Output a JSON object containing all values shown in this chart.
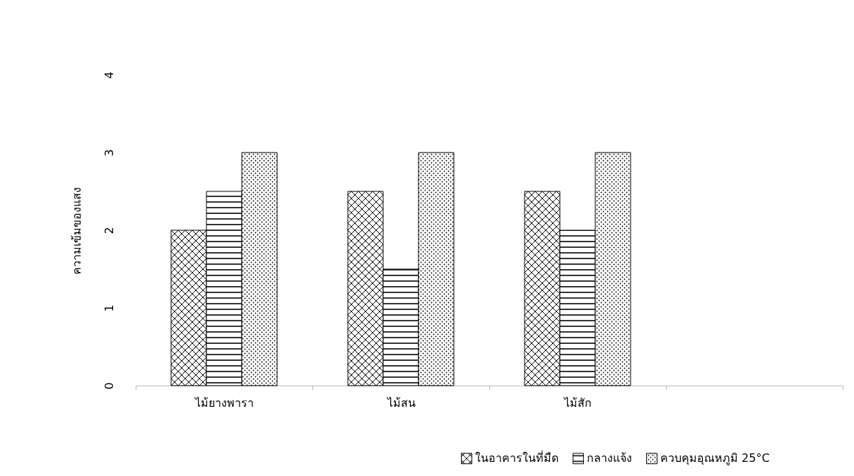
{
  "chart_data": {
    "type": "bar",
    "ylabel": "ความเข้มของแสง",
    "categories": [
      "ไม้ยางพารา",
      "ไม้สน",
      "ไม้สัก",
      null
    ],
    "series": [
      {
        "name": "ในอาคารในที่มืด",
        "color": "#000000",
        "values": [
          2,
          2.5,
          2.5,
          null
        ]
      },
      {
        "name": "กลางแจ้ง",
        "color": "#000000",
        "values": [
          2.5,
          1.5,
          2,
          null
        ]
      },
      {
        "name": "ควบคุมอุณหภูมิ 25°C",
        "color": "#000000",
        "values": [
          3,
          3,
          3,
          null
        ]
      }
    ],
    "ylim": [
      0,
      4
    ],
    "yticks": [
      0,
      1,
      2,
      3,
      4
    ],
    "grid": false,
    "legend": "bottom right"
  }
}
